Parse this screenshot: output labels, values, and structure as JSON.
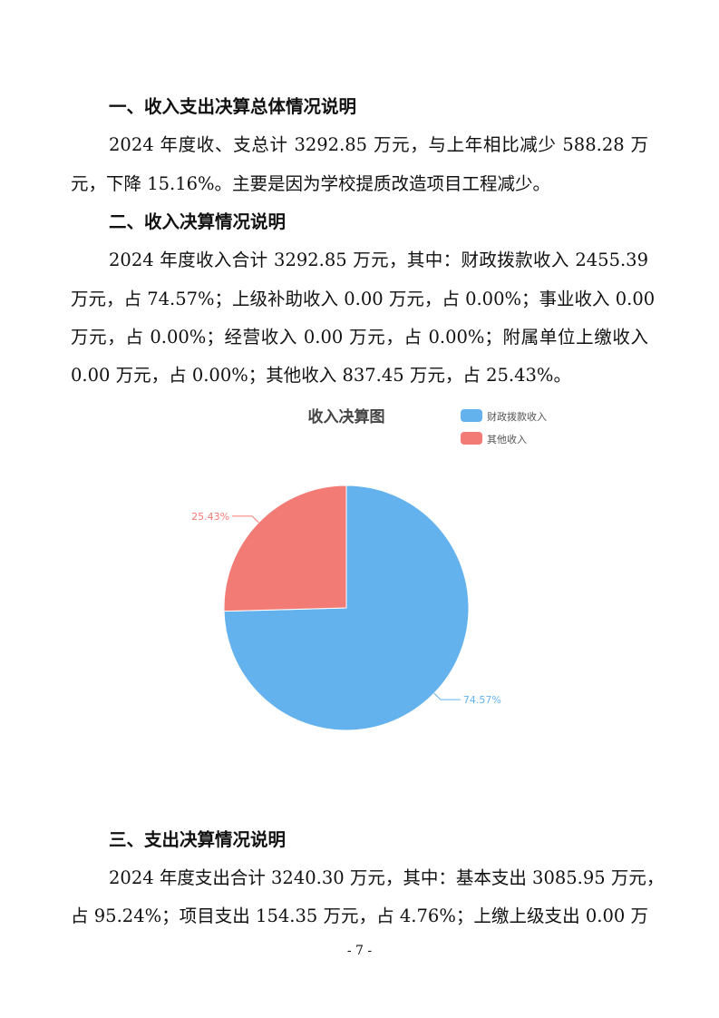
{
  "sections": [
    {
      "heading": "一、收入支出决算总体情况说明",
      "lines": [
        "2024 年度收、支总计 3292.85 万元，与上年相比减少 588.28 万",
        "元，下降 15.16%。主要是因为学校提质改造项目工程减少。"
      ]
    },
    {
      "heading": "二、收入决算情况说明",
      "lines": [
        "2024 年度收入合计 3292.85 万元，其中：财政拨款收入 2455.39",
        "万元，占 74.57%；上级补助收入 0.00 万元，占 0.00%；事业收入 0.00",
        "万元，占 0.00%；经营收入 0.00 万元，占 0.00%；附属单位上缴收入",
        "0.00 万元，占 0.00%；其他收入 837.45 万元，占 25.43%。"
      ]
    },
    {
      "heading": "三、支出决算情况说明",
      "lines": [
        "2024 年度支出合计 3240.30 万元，其中：基本支出 3085.95 万元，",
        "占 95.24%；项目支出 154.35 万元，占 4.76%；上缴上级支出 0.00 万"
      ]
    }
  ],
  "page_number": "- 7 -",
  "chart_data": {
    "type": "pie",
    "title": "收入决算图",
    "legend_position": "top-right",
    "slices": [
      {
        "name": "财政拨款收入",
        "value": 74.57,
        "label": "74.57%",
        "color": "#63b2ee"
      },
      {
        "name": "其他收入",
        "value": 25.43,
        "label": "25.43%",
        "color": "#f27b75"
      }
    ]
  }
}
